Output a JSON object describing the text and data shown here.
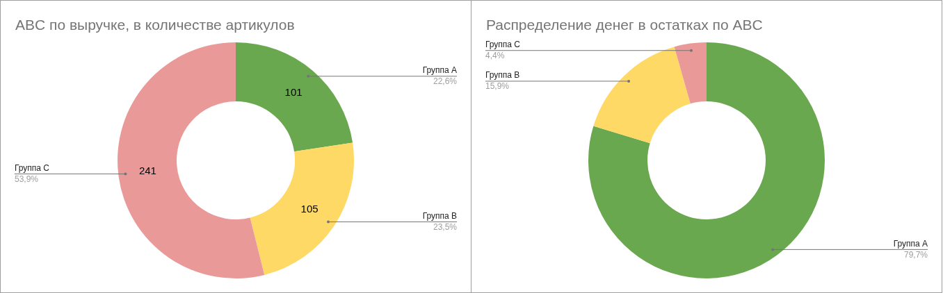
{
  "chart_data": [
    {
      "type": "donut",
      "title": "ABC по выручке, в количестве артикулов",
      "categories": [
        "Группа A",
        "Группа B",
        "Группа C"
      ],
      "values": [
        22.6,
        23.5,
        53.9
      ],
      "colors": [
        "#6aa84f",
        "#ffd966",
        "#ea9999"
      ],
      "value_labels": [
        "22,6%",
        "23,5%",
        "53,9%"
      ],
      "annotations": [
        {
          "text": "101",
          "x": "Группа A"
        },
        {
          "text": "105",
          "x": "Группа B"
        },
        {
          "text": "241",
          "x": "Группа C"
        }
      ],
      "legend": false
    },
    {
      "type": "donut",
      "title": "Распределение денег в остатках по ABC",
      "categories": [
        "Группа A",
        "Группа B",
        "Группа C"
      ],
      "values": [
        79.7,
        15.9,
        4.4
      ],
      "colors": [
        "#6aa84f",
        "#ffd966",
        "#ea9999"
      ],
      "value_labels": [
        "79,7%",
        "15,9%",
        "4,4%"
      ],
      "legend": false
    }
  ]
}
